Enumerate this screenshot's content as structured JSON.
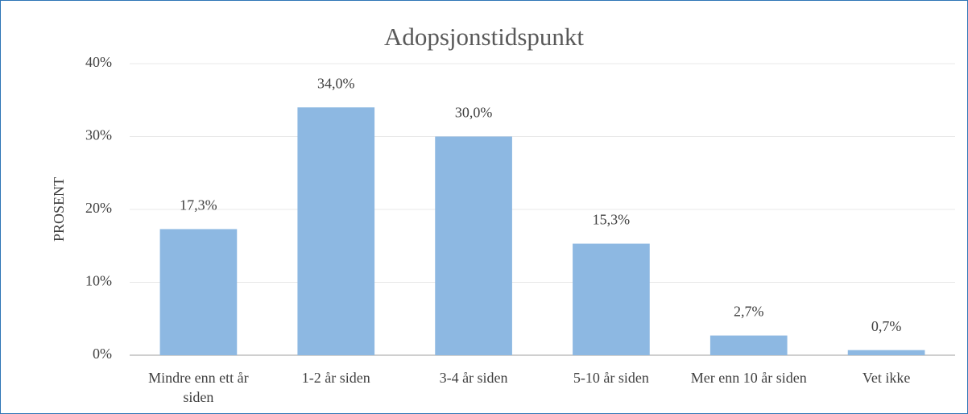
{
  "chart_data": {
    "type": "bar",
    "title": "Adopsjonstidspunkt",
    "y_label": "PROSENT",
    "categories": [
      "Mindre enn ett år siden",
      "1-2 år siden",
      "3-4 år siden",
      "5-10 år siden",
      "Mer enn 10 år siden",
      "Vet ikke"
    ],
    "values": [
      17.3,
      34.0,
      30.0,
      15.3,
      2.7,
      0.7
    ],
    "value_labels": [
      "17,3%",
      "34,0%",
      "30,0%",
      "15,3%",
      "2,7%",
      "0,7%"
    ],
    "color": "#8db8e2",
    "ylim": [
      0,
      40
    ],
    "yticks": [
      {
        "value": 0,
        "label": "0%"
      },
      {
        "value": 10,
        "label": "10%"
      },
      {
        "value": 20,
        "label": "20%"
      },
      {
        "value": 30,
        "label": "30%"
      },
      {
        "value": 40,
        "label": "40%"
      }
    ],
    "grid": true
  }
}
